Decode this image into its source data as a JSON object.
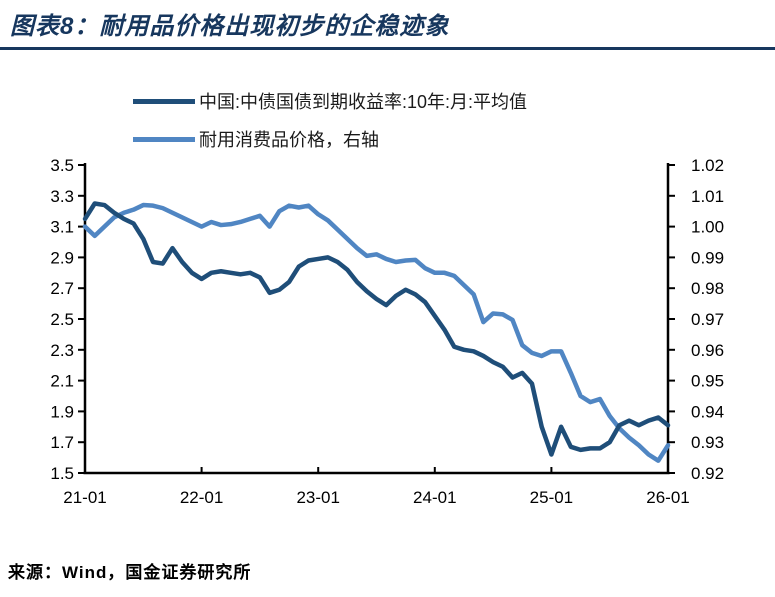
{
  "title": "图表8：耐用品价格出现初步的企稳迹象",
  "source": "来源：Wind，国金证券研究所",
  "colors": {
    "title_navy": "#17375E",
    "yield_line": "#1F4E79",
    "price_line": "#5086C3",
    "axis": "#000000"
  },
  "legend": {
    "items": [
      {
        "label": "中国:中债国债到期收益率:10年:月:平均值",
        "color": "#1F4E79"
      },
      {
        "label": "耐用消费品价格，右轴",
        "color": "#5086C3"
      }
    ]
  },
  "chart_data": {
    "type": "line",
    "title": "耐用品价格出现初步的企稳迹象",
    "x_start": "2021-01",
    "x_end": "2026-01",
    "x_interval": "monthly",
    "x_tick_labels": [
      "21-01",
      "22-01",
      "23-01",
      "24-01",
      "25-01",
      "26-01"
    ],
    "left_axis": {
      "min": 1.5,
      "max": 3.5,
      "tick_labels": [
        "3.5",
        "3.3",
        "3.1",
        "2.9",
        "2.7",
        "2.5",
        "2.3",
        "2.1",
        "1.9",
        "1.7",
        "1.5"
      ]
    },
    "right_axis": {
      "min": 0.92,
      "max": 1.02,
      "tick_labels": [
        "1.02",
        "1.01",
        "1.00",
        "0.99",
        "0.98",
        "0.97",
        "0.96",
        "0.95",
        "0.94",
        "0.93",
        "0.92"
      ]
    },
    "grid": false,
    "legend_position": "top",
    "series": [
      {
        "name": "中国:中债国债到期收益率:10年:月:平均值",
        "axis": "left",
        "color": "#1F4E79",
        "values": [
          3.15,
          3.25,
          3.24,
          3.19,
          3.15,
          3.12,
          3.02,
          2.87,
          2.86,
          2.96,
          2.87,
          2.8,
          2.76,
          2.8,
          2.81,
          2.8,
          2.79,
          2.8,
          2.77,
          2.67,
          2.69,
          2.74,
          2.84,
          2.88,
          2.89,
          2.9,
          2.87,
          2.82,
          2.74,
          2.68,
          2.63,
          2.59,
          2.65,
          2.69,
          2.66,
          2.61,
          2.52,
          2.43,
          2.32,
          2.3,
          2.29,
          2.26,
          2.22,
          2.19,
          2.12,
          2.15,
          2.08,
          1.8,
          1.62,
          1.8,
          1.67,
          1.65,
          1.66,
          1.66,
          1.7,
          1.81,
          1.84,
          1.81,
          1.84,
          1.86,
          1.81
        ]
      },
      {
        "name": "耐用消费品价格，右轴",
        "axis": "right",
        "color": "#5086C3",
        "values": [
          1.0,
          0.997,
          1.0,
          1.003,
          1.0045,
          1.0055,
          1.007,
          1.0068,
          1.006,
          1.0045,
          1.003,
          1.0015,
          1.0,
          1.0015,
          1.0005,
          1.0008,
          1.0015,
          1.0025,
          1.0035,
          1.0,
          1.005,
          1.0068,
          1.0062,
          1.0068,
          1.004,
          1.002,
          0.999,
          0.996,
          0.993,
          0.9905,
          0.991,
          0.9895,
          0.9885,
          0.989,
          0.9892,
          0.9865,
          0.985,
          0.985,
          0.984,
          0.981,
          0.978,
          0.969,
          0.9718,
          0.9715,
          0.9697,
          0.9615,
          0.959,
          0.958,
          0.9595,
          0.9595,
          0.9525,
          0.945,
          0.943,
          0.944,
          0.9385,
          0.9345,
          0.9315,
          0.929,
          0.926,
          0.924,
          0.929
        ]
      }
    ]
  }
}
